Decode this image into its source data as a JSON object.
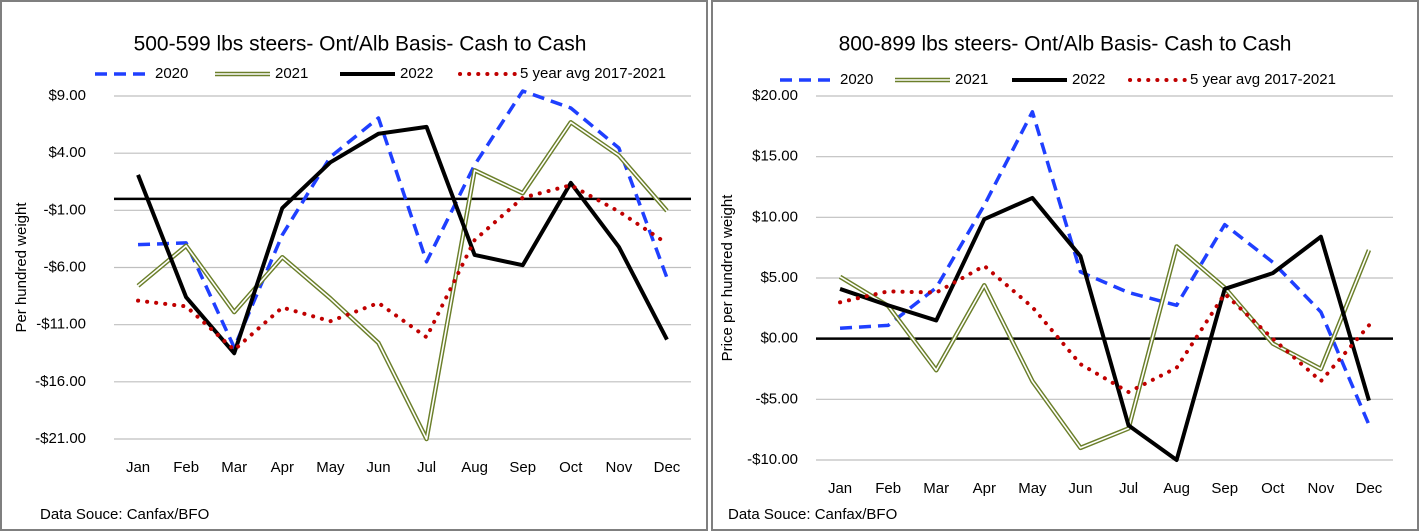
{
  "chart_data": [
    {
      "type": "line",
      "title": "500-599 lbs steers- Ont/Alb Basis- Cash to Cash",
      "y_label": "Per hundred weight",
      "source": "Data Souce: Canfax/BFO",
      "categories": [
        "Jan",
        "Feb",
        "Mar",
        "Apr",
        "May",
        "Jun",
        "Jul",
        "Aug",
        "Sep",
        "Oct",
        "Nov",
        "Dec"
      ],
      "ylim": [
        -21,
        9
      ],
      "yticks": [
        {
          "value": 9,
          "label": "$9.00"
        },
        {
          "value": 4,
          "label": "$4.00"
        },
        {
          "value": -1,
          "label": "-$1.00"
        },
        {
          "value": -6,
          "label": "-$6.00"
        },
        {
          "value": -11,
          "label": "-$11.00"
        },
        {
          "value": -16,
          "label": "-$16.00"
        },
        {
          "value": -21,
          "label": "-$21.00"
        }
      ],
      "grid": true,
      "series": [
        {
          "name": "2020",
          "color": "#1f3fff",
          "style": "dashed",
          "values": [
            -4.0,
            -3.85,
            -13.0,
            -3.15,
            3.67,
            7.08,
            -5.5,
            2.97,
            9.44,
            7.95,
            4.45,
            -6.9
          ]
        },
        {
          "name": "2021",
          "color": "#6b7f2a",
          "style": "double",
          "values": [
            -7.6,
            -4.1,
            -9.9,
            -5.1,
            -8.7,
            -12.6,
            -21,
            2.5,
            0.5,
            6.7,
            3.8,
            -1.05
          ]
        },
        {
          "name": "2022",
          "color": "#000000",
          "style": "solid",
          "values": [
            2.1,
            -8.6,
            -13.5,
            -0.8,
            3.2,
            5.7,
            6.3,
            -4.9,
            -5.8,
            1.4,
            -4.2,
            -12.3
          ]
        },
        {
          "name": "5 year avg 2017-2021",
          "color": "#c00000",
          "style": "dotted",
          "values": [
            -8.9,
            -9.4,
            -13.2,
            -9.5,
            -10.7,
            -9.1,
            -12.1,
            -3.6,
            0.1,
            1.2,
            -1.1,
            -3.9
          ]
        }
      ]
    },
    {
      "type": "line",
      "title": "800-899 lbs steers- Ont/Alb Basis- Cash to Cash",
      "y_label": "Price per hundred weight",
      "source": "Data Souce: Canfax/BFO",
      "categories": [
        "Jan",
        "Feb",
        "Mar",
        "Apr",
        "May",
        "Jun",
        "Jul",
        "Aug",
        "Sep",
        "Oct",
        "Nov",
        "Dec"
      ],
      "ylim": [
        -10,
        20
      ],
      "yticks": [
        {
          "value": 20,
          "label": "$20.00"
        },
        {
          "value": 15,
          "label": "$15.00"
        },
        {
          "value": 10,
          "label": "$10.00"
        },
        {
          "value": 5,
          "label": "$5.00"
        },
        {
          "value": 0,
          "label": "$0.00"
        },
        {
          "value": -5,
          "label": "-$5.00"
        },
        {
          "value": -10,
          "label": "-$10.00"
        }
      ],
      "grid": true,
      "series": [
        {
          "name": "2020",
          "color": "#1f3fff",
          "style": "dashed",
          "values": [
            0.86,
            1.1,
            4.2,
            11.0,
            18.7,
            5.5,
            3.8,
            2.75,
            9.4,
            6.3,
            2.2,
            -7.1
          ]
        },
        {
          "name": "2021",
          "color": "#6b7f2a",
          "style": "double",
          "values": [
            5.1,
            2.7,
            -2.6,
            4.4,
            -3.5,
            -9.0,
            -7.4,
            7.6,
            4.2,
            -0.4,
            -2.5,
            7.3
          ]
        },
        {
          "name": "2022",
          "color": "#000000",
          "style": "solid",
          "values": [
            4.1,
            2.75,
            1.5,
            9.85,
            11.6,
            6.8,
            -7.15,
            -10,
            4.1,
            5.4,
            8.4,
            -5.1
          ]
        },
        {
          "name": "5 year avg 2017-2021",
          "color": "#c00000",
          "style": "dotted",
          "values": [
            3.0,
            3.9,
            3.8,
            6.0,
            2.6,
            -2.1,
            -4.4,
            -2.4,
            3.7,
            0.0,
            -3.5,
            1.1
          ]
        }
      ]
    }
  ]
}
